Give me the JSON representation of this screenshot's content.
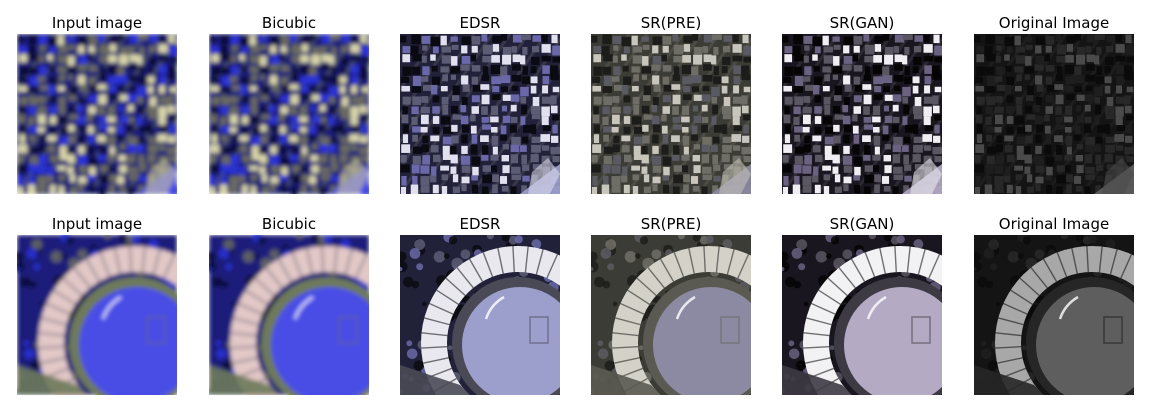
{
  "figure": {
    "rows": [
      {
        "panels": [
          {
            "caption": "Input image",
            "style": "blue-blur",
            "scene": "city"
          },
          {
            "caption": "Bicubic",
            "style": "blue-blur",
            "scene": "city"
          },
          {
            "caption": "EDSR",
            "style": "lavender-sharp",
            "scene": "city"
          },
          {
            "caption": "SR(PRE)",
            "style": "gray-sharp",
            "scene": "city"
          },
          {
            "caption": "SR(GAN)",
            "style": "contrast-sharp",
            "scene": "city"
          },
          {
            "caption": "Original Image",
            "style": "dark-gray",
            "scene": "city"
          }
        ]
      },
      {
        "panels": [
          {
            "caption": "Input image",
            "style": "blue-blur",
            "scene": "stadium"
          },
          {
            "caption": "Bicubic",
            "style": "blue-blur",
            "scene": "stadium"
          },
          {
            "caption": "EDSR",
            "style": "lavender-sharp",
            "scene": "stadium"
          },
          {
            "caption": "SR(PRE)",
            "style": "gray-sharp",
            "scene": "stadium"
          },
          {
            "caption": "SR(GAN)",
            "style": "contrast-sharp",
            "scene": "stadium"
          },
          {
            "caption": "Original Image",
            "style": "dark-gray",
            "scene": "stadium"
          }
        ]
      }
    ]
  }
}
